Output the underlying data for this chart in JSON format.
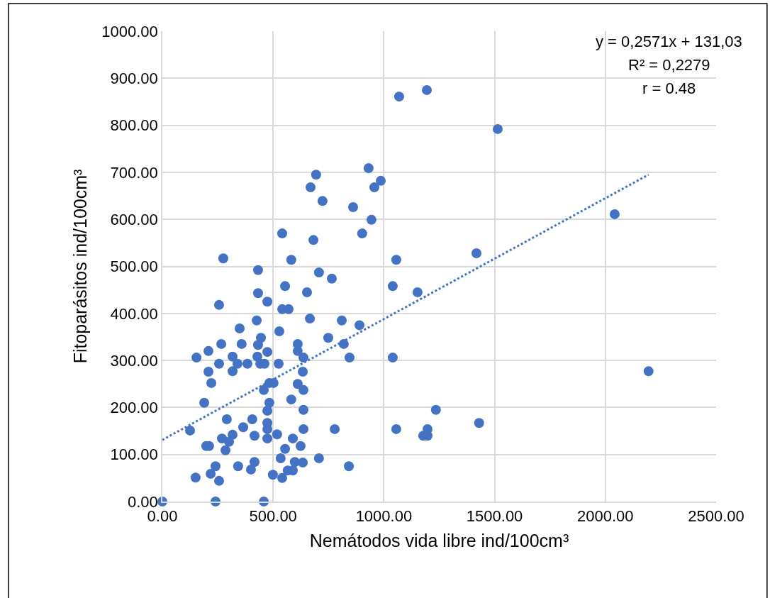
{
  "chart_data": {
    "type": "scatter",
    "xlabel": "Nemátodos vida libre ind/100cm³",
    "ylabel": "Fitoparásitos ind/100cm³",
    "annotations": [
      "y = 0,2571x + 131,03",
      "R² = 0,2279",
      "r = 0.48"
    ],
    "series": [
      {
        "color": "#4472c4",
        "marker": "circle",
        "x": [
          0,
          240,
          458,
          541,
          682,
          275,
          582,
          432,
          707,
          765,
          554,
          432,
          653,
          474,
          256,
          541,
          570,
          426,
          666,
          810,
          890,
          349,
          528,
          445,
          749,
          266,
          358,
          432,
          611,
          819,
          208,
          154,
          317,
          429,
          474,
          611,
          637,
          845,
          256,
          339,
          384,
          442,
          461,
          525,
          208,
          317,
          634,
          221,
          483,
          502,
          458,
          611,
          637,
          189,
          483,
          474,
          582,
          637,
          291,
          406,
          125,
          365,
          474,
          474,
          637,
          778,
          269,
          317,
          416,
          474,
          518,
          589,
          301,
          198,
          211,
          285,
          554,
          624,
          534,
          707,
          240,
          342,
          416,
          400,
          598,
          634,
          842,
          218,
          150,
          256,
          499,
          541,
          566,
          589,
          931,
          694,
          669,
          986,
          957,
          723,
          861,
          944,
          902,
          1056,
          1418,
          1040,
          1152,
          1040,
          1056,
          1235,
          1178,
          1197,
          1197,
          1430,
          1069,
          1194,
          1514,
          2042,
          2195
        ],
        "values": [
          0,
          0,
          0,
          570,
          556,
          517,
          514,
          492,
          487,
          474,
          458,
          443,
          445,
          425,
          418,
          409,
          409,
          385,
          389,
          385,
          375,
          368,
          362,
          348,
          348,
          335,
          335,
          333,
          335,
          335,
          320,
          306,
          308,
          308,
          318,
          320,
          306,
          306,
          293,
          293,
          293,
          293,
          293,
          293,
          276,
          277,
          276,
          252,
          252,
          252,
          237,
          250,
          237,
          210,
          210,
          193,
          217,
          195,
          175,
          175,
          151,
          158,
          167,
          154,
          154,
          154,
          134,
          142,
          140,
          134,
          143,
          134,
          127,
          118,
          118,
          109,
          112,
          118,
          92,
          92,
          75,
          75,
          84,
          68,
          84,
          83,
          75,
          59,
          51,
          44,
          57,
          50,
          66,
          66,
          709,
          695,
          668,
          682,
          668,
          639,
          626,
          599,
          570,
          514,
          528,
          458,
          445,
          306,
          154,
          195,
          140,
          140,
          154,
          167,
          861,
          875,
          792,
          611,
          277
        ]
      },
      {
        "type": "line",
        "color": "#4472c4",
        "line_style": "dotted",
        "marker": "none",
        "x": [
          0,
          2195
        ],
        "values": [
          131,
          695
        ]
      }
    ],
    "xlim": [
      0,
      2500
    ],
    "ylim": [
      0,
      1000
    ],
    "xticks": [
      {
        "value": 0,
        "label": "0.00"
      },
      {
        "value": 500,
        "label": "500.00"
      },
      {
        "value": 1000,
        "label": "1000.00"
      },
      {
        "value": 1500,
        "label": "1500.00"
      },
      {
        "value": 2000,
        "label": "2000.00"
      },
      {
        "value": 2500,
        "label": "2500.00"
      }
    ],
    "yticks": [
      {
        "value": 0,
        "label": "0.00"
      },
      {
        "value": 100,
        "label": "100.00"
      },
      {
        "value": 200,
        "label": "200.00"
      },
      {
        "value": 300,
        "label": "300.00"
      },
      {
        "value": 400,
        "label": "400.00"
      },
      {
        "value": 500,
        "label": "500.00"
      },
      {
        "value": 600,
        "label": "600.00"
      },
      {
        "value": 700,
        "label": "700.00"
      },
      {
        "value": 800,
        "label": "800.00"
      },
      {
        "value": 900,
        "label": "900.00"
      },
      {
        "value": 1000,
        "label": "1000.00"
      }
    ],
    "grid": true
  }
}
